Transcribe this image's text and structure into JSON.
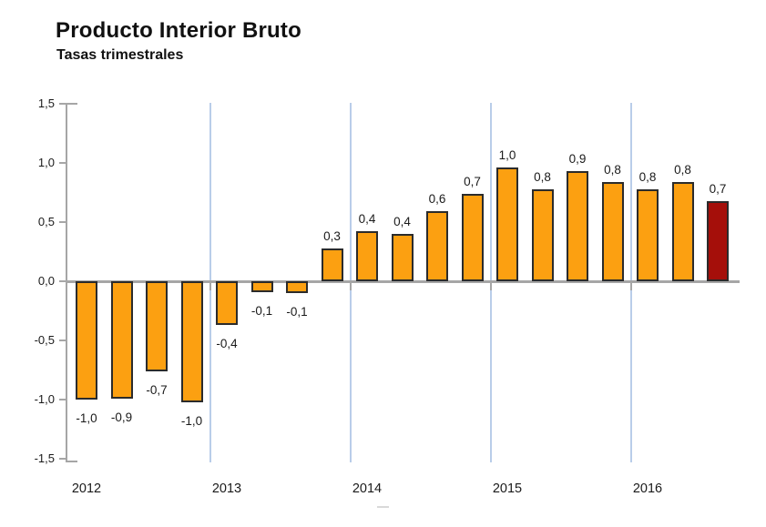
{
  "header": {
    "title": "Producto Interior Bruto",
    "subtitle": "Tasas trimestrales"
  },
  "colors": {
    "bar_orange": "#FCA011",
    "bar_highlight_red": "#A50F0A",
    "bar_border": "#2B2B2B",
    "gridline_blue": "#B9CDE9",
    "axis_gray": "#A6A6A6",
    "text": "#1A1A1A"
  },
  "chart_data": {
    "type": "bar",
    "title": "Producto Interior Bruto",
    "subtitle": "Tasas trimestrales",
    "ylabel": "",
    "xlabel": "",
    "ylim": [
      -1.5,
      1.5
    ],
    "ytick_step": 0.5,
    "yticks": [
      {
        "label": "1,5",
        "value": 1.5
      },
      {
        "label": "1,0",
        "value": 1.0
      },
      {
        "label": "0,5",
        "value": 0.5
      },
      {
        "label": "0,0",
        "value": 0.0
      },
      {
        "label": "-0,5",
        "value": -0.5
      },
      {
        "label": "-1,0",
        "value": -1.0
      },
      {
        "label": "-1,5",
        "value": -1.5
      }
    ],
    "grid": "vertical year separators, light blue",
    "legend": "none",
    "years": [
      {
        "year": "2012",
        "bars": [
          {
            "label": "-1,0",
            "value": -1.0,
            "plot_value": -1.0
          },
          {
            "label": "-0,9",
            "value": -0.9,
            "plot_value": -0.99
          },
          {
            "label": "-0,7",
            "value": -0.7,
            "plot_value": -0.76
          },
          {
            "label": "-1,0",
            "value": -1.0,
            "plot_value": -1.02
          }
        ]
      },
      {
        "year": "2013",
        "bars": [
          {
            "label": "-0,4",
            "value": -0.4,
            "plot_value": -0.37
          },
          {
            "label": "-0,1",
            "value": -0.1,
            "plot_value": -0.09
          },
          {
            "label": "-0,1",
            "value": -0.1,
            "plot_value": -0.1
          },
          {
            "label": "0,3",
            "value": 0.3,
            "plot_value": 0.28
          }
        ]
      },
      {
        "year": "2014",
        "bars": [
          {
            "label": "0,4",
            "value": 0.4,
            "plot_value": 0.42
          },
          {
            "label": "0,4",
            "value": 0.4,
            "plot_value": 0.4
          },
          {
            "label": "0,6",
            "value": 0.6,
            "plot_value": 0.59
          },
          {
            "label": "0,7",
            "value": 0.7,
            "plot_value": 0.74
          }
        ]
      },
      {
        "year": "2015",
        "bars": [
          {
            "label": "1,0",
            "value": 1.0,
            "plot_value": 0.96
          },
          {
            "label": "0,8",
            "value": 0.8,
            "plot_value": 0.78
          },
          {
            "label": "0,9",
            "value": 0.9,
            "plot_value": 0.93
          },
          {
            "label": "0,8",
            "value": 0.8,
            "plot_value": 0.84
          }
        ]
      },
      {
        "year": "2016",
        "bars": [
          {
            "label": "0,8",
            "value": 0.8,
            "plot_value": 0.78
          },
          {
            "label": "0,8",
            "value": 0.8,
            "plot_value": 0.84
          },
          {
            "label": "0,7",
            "value": 0.7,
            "plot_value": 0.68,
            "highlight": true
          }
        ]
      }
    ]
  }
}
